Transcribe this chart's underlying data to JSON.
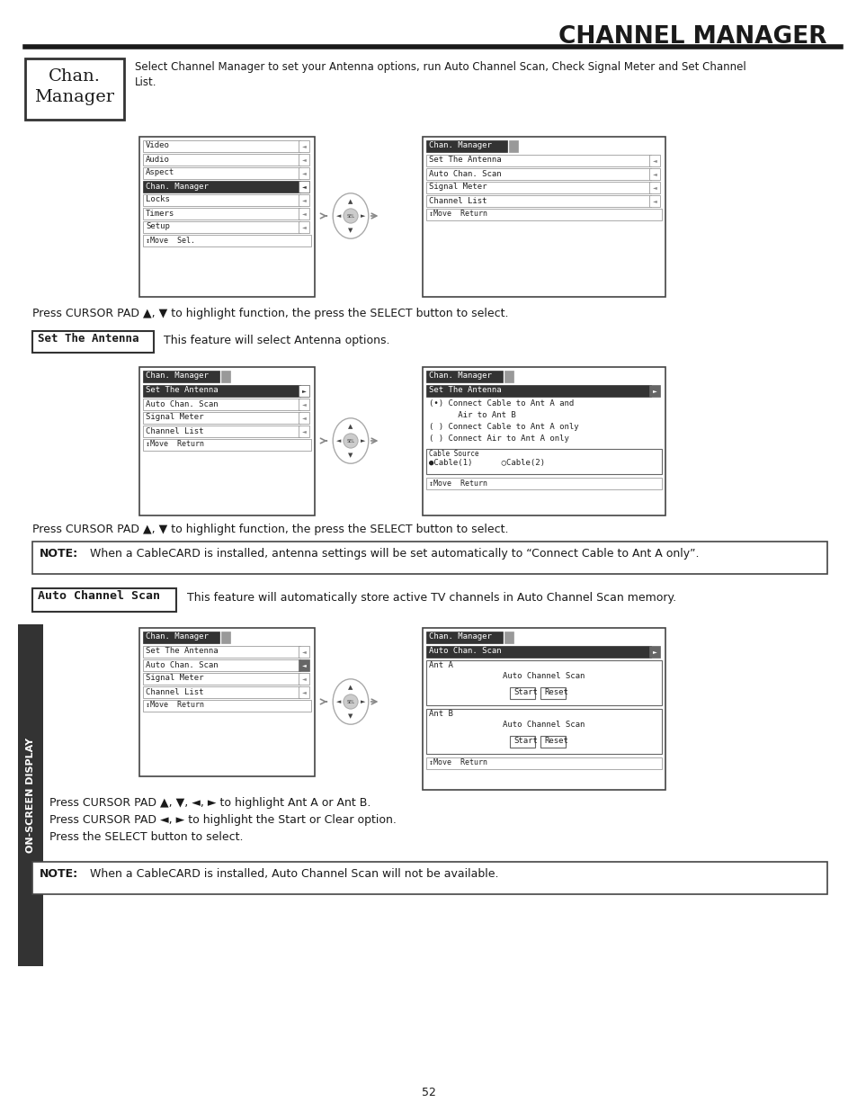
{
  "title": "CHANNEL MANAGER",
  "page_num": "52",
  "intro_text": "Select Channel Manager to set your Antenna options, run Auto Channel Scan, Check Signal Meter and Set Channel\nList.",
  "cursor_pad_text1": "Press CURSOR PAD ▲, ▼ to highlight function, the press the SELECT button to select.",
  "cursor_pad_text2": "Press CURSOR PAD ▲, ▼ to highlight function, the press the SELECT button to select.",
  "cursor_pad_text3": "Press CURSOR PAD ▲, ▼, ◄, ► to highlight Ant A or Ant B.\nPress CURSOR PAD ◄, ► to highlight the Start or Clear option.\nPress the SELECT button to select.",
  "set_antenna_label": "Set The Antenna",
  "set_antenna_desc": "This feature will select Antenna options.",
  "auto_channel_label": "Auto Channel Scan",
  "auto_channel_desc": "This feature will automatically store active TV channels in Auto Channel Scan memory.",
  "note1_bold": "NOTE:",
  "note1_text": "     When a CableCARD is installed, antenna settings will be set automatically to “Connect Cable to Ant A only”.",
  "note2_bold": "NOTE:",
  "note2_text": "     When a CableCARD is installed, Auto Channel Scan will not be available.",
  "left_menu1": [
    "Video",
    "Audio",
    "Aspect",
    "Chan. Manager",
    "Locks",
    "Timers",
    "Setup"
  ],
  "left_menu1_footer": "↕Move  Sel.",
  "right_menu1_header": "Chan. Manager",
  "right_menu1": [
    "Set The Antenna",
    "Auto Chan. Scan",
    "Signal Meter",
    "Channel List"
  ],
  "right_menu1_footer": "↕Move  Return",
  "left_menu2_header": "Chan. Manager",
  "left_menu2": [
    "Set The Antenna",
    "Auto Chan. Scan",
    "Signal Meter",
    "Channel List"
  ],
  "left_menu2_selected": "Set The Antenna",
  "left_menu2_footer": "↕Move  Return",
  "right_menu2_header": "Chan. Manager",
  "right_menu2_selected": "Set The Antenna",
  "right_menu2_radio": [
    "(•) Connect Cable to Ant A and",
    "      Air to Ant B",
    "( ) Connect Cable to Ant A only",
    "( ) Connect Air to Ant A only"
  ],
  "right_menu2_cable_label": "Cable Source",
  "right_menu2_cable_val": "●Cable(1)      ○Cable(2)",
  "right_menu2_footer": "↕Move  Return",
  "left_menu3_header": "Chan. Manager",
  "left_menu3": [
    "Set The Antenna",
    "Auto Chan. Scan",
    "Signal Meter",
    "Channel List"
  ],
  "left_menu3_selected": "Auto Chan. Scan",
  "left_menu3_footer": "↕Move  Return",
  "right_menu3_header": "Chan. Manager",
  "right_menu3_selected": "Auto Chan. Scan",
  "right_menu3_ant_a": "Ant A",
  "right_menu3_ant_b": "Ant B",
  "right_menu3_footer": "↕Move  Return",
  "on_screen_display": "ON-SCREEN DISPLAY"
}
